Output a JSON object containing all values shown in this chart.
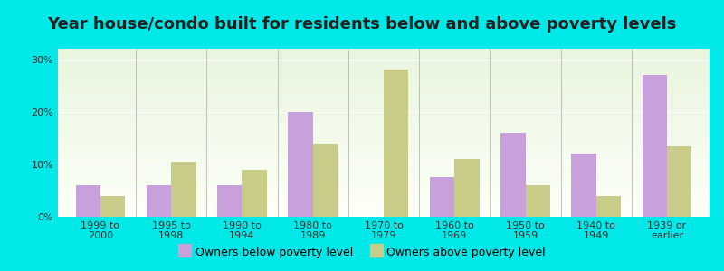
{
  "title": "Year house/condo built for residents below and above poverty levels",
  "categories": [
    "1999 to\n2000",
    "1995 to\n1998",
    "1990 to\n1994",
    "1980 to\n1989",
    "1970 to\n1979",
    "1960 to\n1969",
    "1950 to\n1959",
    "1940 to\n1949",
    "1939 or\nearlier"
  ],
  "below_poverty": [
    6.0,
    6.0,
    6.0,
    20.0,
    0.0,
    7.5,
    16.0,
    12.0,
    27.0
  ],
  "above_poverty": [
    4.0,
    10.5,
    9.0,
    14.0,
    28.0,
    11.0,
    6.0,
    4.0,
    13.5
  ],
  "below_color": "#c8a0dc",
  "above_color": "#c8cc88",
  "outer_bg": "#00e8e8",
  "ylim": [
    0,
    32
  ],
  "yticks": [
    0,
    10,
    20,
    30
  ],
  "ytick_labels": [
    "0%",
    "10%",
    "20%",
    "30%"
  ],
  "bar_width": 0.35,
  "legend_below_label": "Owners below poverty level",
  "legend_above_label": "Owners above poverty level",
  "title_fontsize": 13,
  "tick_fontsize": 8,
  "legend_fontsize": 9,
  "title_color": "#222222"
}
